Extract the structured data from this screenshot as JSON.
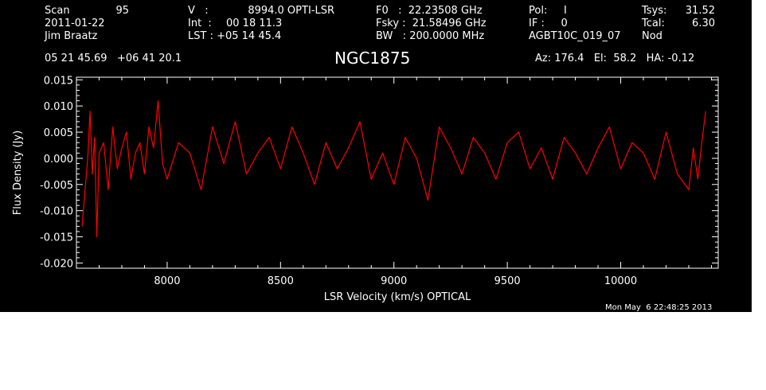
{
  "header": {
    "col1": [
      "Scan",
      "2011-01-22",
      "Jim Braatz"
    ],
    "col1_value": "95",
    "col2": [
      "V   :",
      "Int  :",
      "LST : +05 14 45.4"
    ],
    "col2_values": [
      "8994.0 OPTI-LSR",
      "00 18 11.3"
    ],
    "col3": [
      "F0   :  22.23508 GHz",
      "Fsky :  21.58496 GHz",
      "BW   : 200.0000 MHz"
    ],
    "col4": [
      "Pol:     I",
      "IF :     0",
      "AGBT10C_019_07"
    ],
    "col5": [
      "Tsys:",
      "Tcal:",
      "Nod"
    ],
    "col5_values": [
      "31.52",
      "6.30"
    ],
    "coords": "05 21 45.69   +06 41 20.1",
    "source": "NGC1875",
    "azel": "Az: 176.4   El:  58.2   HA: -0.12",
    "timestamp": "Mon May  6 22:48:25 2013"
  },
  "colors": {
    "background": "#000000",
    "axes": "#ffffff",
    "series": "#ff0000"
  },
  "chart_data": {
    "type": "line",
    "xlabel": "LSR Velocity (km/s) OPTICAL",
    "ylabel": "Flux Density (Jy)",
    "xlim": [
      7600,
      10430
    ],
    "ylim": [
      -0.021,
      0.0155
    ],
    "xticks": [
      8000,
      8500,
      9000,
      9500,
      10000
    ],
    "xtick_labels": [
      "8000",
      "8500",
      "9000",
      "9500",
      "10000"
    ],
    "yticks": [
      0.015,
      0.01,
      0.005,
      0.0,
      -0.005,
      -0.01,
      -0.015,
      -0.02
    ],
    "ytick_labels": [
      "0.015",
      "0.010",
      "0.005",
      "0.000",
      "-0.005",
      "-0.010",
      "-0.015",
      "-0.020"
    ],
    "grid": false,
    "series": [
      {
        "x": [
          7625,
          7640,
          7650,
          7660,
          7670,
          7680,
          7690,
          7700,
          7720,
          7740,
          7760,
          7780,
          7800,
          7820,
          7840,
          7860,
          7880,
          7900,
          7920,
          7940,
          7960,
          7980,
          8000,
          8050,
          8100,
          8150,
          8200,
          8250,
          8300,
          8350,
          8400,
          8450,
          8500,
          8550,
          8600,
          8650,
          8700,
          8750,
          8800,
          8850,
          8900,
          8950,
          9000,
          9050,
          9100,
          9150,
          9200,
          9250,
          9300,
          9350,
          9400,
          9450,
          9500,
          9550,
          9600,
          9650,
          9700,
          9750,
          9800,
          9850,
          9900,
          9950,
          10000,
          10050,
          10100,
          10150,
          10200,
          10250,
          10300,
          10320,
          10340,
          10360,
          10375
        ],
        "y": [
          -0.013,
          -0.005,
          0.0,
          0.009,
          -0.003,
          0.004,
          -0.015,
          0.001,
          0.003,
          -0.006,
          0.006,
          -0.002,
          0.002,
          0.005,
          -0.004,
          0.001,
          0.003,
          -0.003,
          0.006,
          0.002,
          0.011,
          -0.001,
          -0.004,
          0.003,
          0.001,
          -0.006,
          0.006,
          -0.001,
          0.007,
          -0.003,
          0.001,
          0.004,
          -0.002,
          0.006,
          0.001,
          -0.005,
          0.003,
          -0.002,
          0.002,
          0.007,
          -0.004,
          0.001,
          -0.005,
          0.004,
          0.0,
          -0.008,
          0.006,
          0.002,
          -0.003,
          0.004,
          0.001,
          -0.004,
          0.003,
          0.005,
          -0.002,
          0.002,
          -0.004,
          0.004,
          0.001,
          -0.003,
          0.002,
          0.006,
          -0.002,
          0.003,
          0.001,
          -0.004,
          0.005,
          -0.003,
          -0.006,
          0.002,
          -0.004,
          0.004,
          0.009
        ]
      }
    ]
  }
}
